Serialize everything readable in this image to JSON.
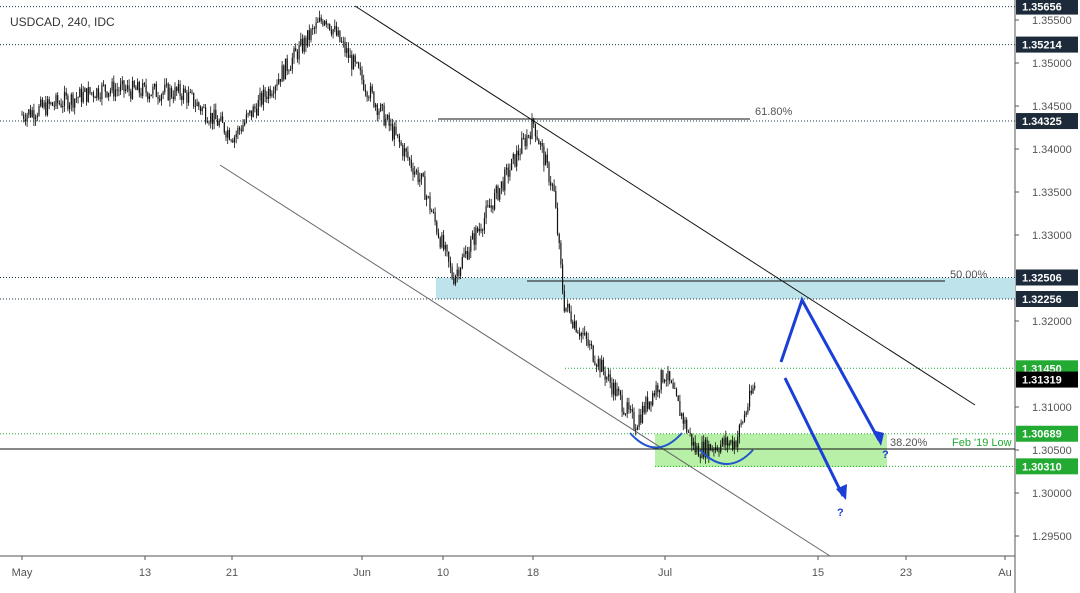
{
  "chart_data": {
    "type": "candlestick",
    "title": "USDCAD, 240, IDC",
    "xlabel": "",
    "ylabel": "",
    "ylim": [
      1.293,
      1.357
    ],
    "x_ticks": [
      "May",
      "13",
      "21",
      "Jun",
      "10",
      "18",
      "Jul",
      "15",
      "23",
      "Au"
    ],
    "y_ticks": [
      "1.35500",
      "1.35000",
      "1.34500",
      "1.34000",
      "1.33500",
      "1.33000",
      "1.32000",
      "1.31000",
      "1.30500",
      "1.30000",
      "1.29500"
    ],
    "price_tags": [
      {
        "label": "1.35656",
        "value": 1.35656,
        "style": "dark"
      },
      {
        "label": "1.35214",
        "value": 1.35214,
        "style": "dark"
      },
      {
        "label": "1.34325",
        "value": 1.34325,
        "style": "dark"
      },
      {
        "label": "1.32506",
        "value": 1.32506,
        "style": "dark"
      },
      {
        "label": "1.32256",
        "value": 1.32256,
        "style": "dark"
      },
      {
        "label": "1.31450",
        "value": 1.3145,
        "style": "green"
      },
      {
        "label": "1.31319",
        "value": 1.31319,
        "style": "black"
      },
      {
        "label": "1.30689",
        "value": 1.30689,
        "style": "green"
      },
      {
        "label": "1.30310",
        "value": 1.3031,
        "style": "green"
      }
    ],
    "annotations": {
      "fib_618": "61.80%",
      "fib_500": "50.00%",
      "fib_382": "38.20%",
      "feb_low": "Feb '19 Low",
      "q1": "?",
      "q2": "?"
    },
    "key_points": [
      {
        "date": "May 1",
        "price": 1.344
      },
      {
        "date": "May 9",
        "price": 1.347
      },
      {
        "date": "May 17",
        "price": 1.3465
      },
      {
        "date": "May 22",
        "price": 1.3415
      },
      {
        "date": "May 31",
        "price": 1.3555
      },
      {
        "date": "Jun 7",
        "price": 1.336
      },
      {
        "date": "Jun 10",
        "price": 1.325
      },
      {
        "date": "Jun 18",
        "price": 1.343
      },
      {
        "date": "Jun 20",
        "price": 1.335
      },
      {
        "date": "Jun 21",
        "price": 1.322
      },
      {
        "date": "Jun 28",
        "price": 1.308
      },
      {
        "date": "Jul 1",
        "price": 1.314
      },
      {
        "date": "Jul 4",
        "price": 1.305
      },
      {
        "date": "Jul 8",
        "price": 1.306
      },
      {
        "date": "Jul 10",
        "price": 1.313
      }
    ],
    "colors": {
      "candle": "#111111",
      "resistance_zone": "#bfe3ea",
      "support_zone": "#b7f0a6",
      "projection": "#1a3fd6",
      "green_tag": "#22aa33",
      "dark_tag": "#1c2a3a"
    }
  }
}
